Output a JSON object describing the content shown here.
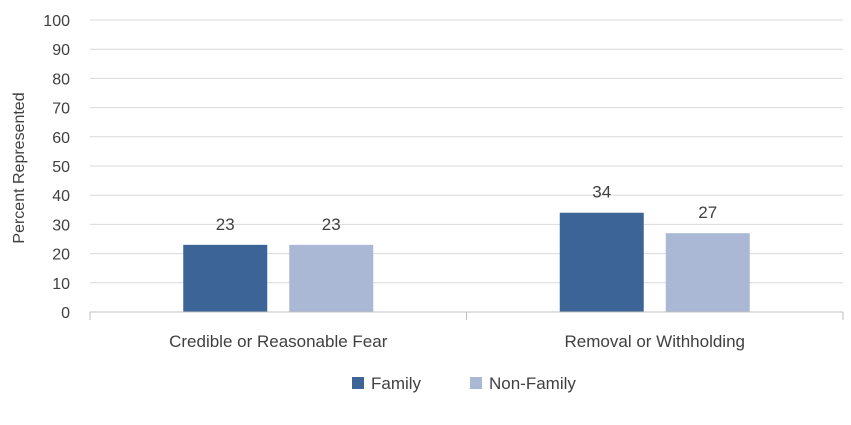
{
  "chart_data": {
    "type": "bar",
    "title": "",
    "xlabel": "",
    "ylabel": "Percent Represented",
    "ylim": [
      0,
      100
    ],
    "yticks": [
      0,
      10,
      20,
      30,
      40,
      50,
      60,
      70,
      80,
      90,
      100
    ],
    "grid": true,
    "legend_position": "bottom",
    "categories": [
      "Credible or Reasonable Fear",
      "Removal or Withholding"
    ],
    "series": [
      {
        "name": "Family",
        "color": "#3d6496",
        "values": [
          23,
          34
        ]
      },
      {
        "name": "Non-Family",
        "color": "#aab8d6",
        "values": [
          23,
          27
        ]
      }
    ]
  }
}
